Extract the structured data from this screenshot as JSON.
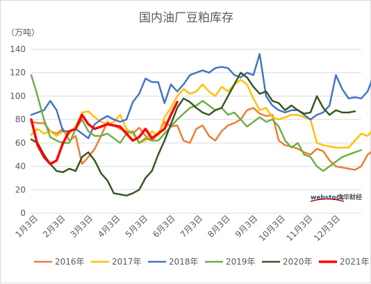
{
  "chart_data": {
    "type": "line",
    "title": "国内油厂豆粕库存",
    "unit_label": "（万吨）",
    "ylim": [
      0,
      140
    ],
    "y_ticks": [
      0,
      20,
      40,
      60,
      80,
      100,
      120,
      140
    ],
    "x_ticks": [
      "1月3日",
      "2月3日",
      "3月3日",
      "4月3日",
      "5月3日",
      "6月3日",
      "7月3日",
      "8月3日",
      "9月3日",
      "10月3日",
      "11月3日",
      "12月3日"
    ],
    "x_range": [
      1,
      53
    ],
    "grid": true,
    "legend_position": "bottom",
    "watermark": "webstock 文华财经",
    "series": [
      {
        "name": "2016年",
        "color": "#ed7d31",
        "width": 2.5,
        "values": [
          78,
          77,
          77,
          70,
          68,
          72,
          62,
          66,
          42,
          48,
          55,
          66,
          78,
          75,
          72,
          70,
          68,
          73,
          66,
          62,
          68,
          78,
          74,
          75,
          62,
          60,
          72,
          75,
          66,
          62,
          70,
          75,
          77,
          80,
          88,
          90,
          85,
          83,
          84,
          62,
          58,
          57,
          55,
          52,
          50,
          55,
          53,
          45,
          40,
          39,
          38,
          37,
          40,
          50,
          54
        ]
      },
      {
        "name": "2017年",
        "color": "#ffc000",
        "width": 2.5,
        "values": [
          67,
          72,
          68,
          70,
          66,
          70,
          68,
          74,
          86,
          87,
          82,
          78,
          76,
          78,
          84,
          72,
          68,
          60,
          62,
          70,
          66,
          82,
          90,
          100,
          106,
          102,
          104,
          110,
          104,
          100,
          108,
          104,
          110,
          114,
          110,
          98,
          88,
          90,
          82,
          80,
          82,
          84,
          84,
          82,
          80,
          60,
          58,
          57,
          56,
          56,
          56,
          62,
          68,
          66,
          72,
          82
        ]
      },
      {
        "name": "2018年",
        "color": "#4472c4",
        "width": 2.5,
        "values": [
          84,
          86,
          88,
          96,
          88,
          70,
          70,
          72,
          68,
          64,
          76,
          80,
          83,
          80,
          78,
          80,
          95,
          102,
          115,
          112,
          112,
          94,
          110,
          104,
          110,
          118,
          120,
          122,
          120,
          124,
          125,
          124,
          118,
          116,
          120,
          118,
          136,
          100,
          92,
          88,
          86,
          88,
          88,
          84,
          80,
          84,
          86,
          92,
          118,
          106,
          98,
          99,
          98,
          104,
          118
        ]
      },
      {
        "name": "2019年",
        "color": "#70ad47",
        "width": 2.5,
        "values": [
          118,
          100,
          80,
          65,
          62,
          60,
          60,
          72,
          80,
          70,
          66,
          66,
          68,
          64,
          60,
          68,
          70,
          60,
          64,
          62,
          62,
          68,
          74,
          80,
          85,
          90,
          92,
          96,
          92,
          88,
          90,
          84,
          86,
          80,
          74,
          78,
          82,
          78,
          80,
          74,
          62,
          56,
          60,
          50,
          48,
          40,
          36,
          40,
          44,
          48,
          50,
          52,
          54
        ]
      },
      {
        "name": "2020年",
        "color": "#375623",
        "width": 2.5,
        "values": [
          63,
          60,
          50,
          42,
          36,
          35,
          38,
          36,
          48,
          52,
          45,
          34,
          28,
          17,
          16,
          15,
          17,
          20,
          30,
          36,
          50,
          62,
          76,
          90,
          98,
          95,
          90,
          86,
          84,
          88,
          90,
          100,
          110,
          120,
          116,
          108,
          102,
          104,
          96,
          94,
          88,
          92,
          88,
          85,
          86,
          100,
          90,
          84,
          88,
          86,
          86,
          87
        ]
      },
      {
        "name": "2021年",
        "color": "#ff0000",
        "width": 3.5,
        "values": [
          80,
          58,
          48,
          42,
          45,
          60,
          70,
          72,
          84,
          76,
          72,
          74,
          76,
          75,
          74,
          68,
          62,
          65,
          72,
          64,
          68,
          72,
          84,
          95
        ]
      }
    ]
  }
}
